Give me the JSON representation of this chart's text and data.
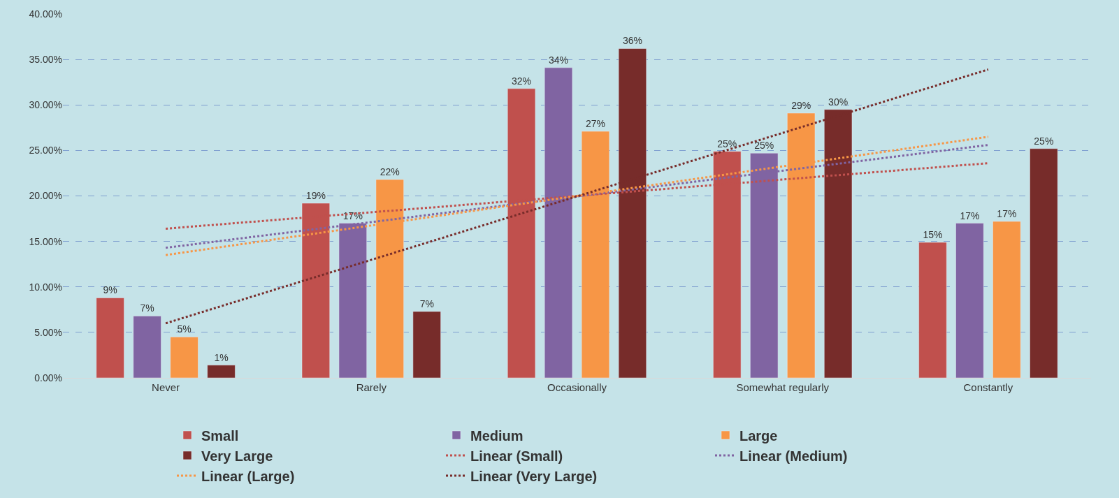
{
  "chart_data": {
    "type": "bar",
    "categories": [
      "Never",
      "Rarely",
      "Occasionally",
      "Somewhat regularly",
      "Constantly"
    ],
    "ylim": [
      0,
      40
    ],
    "yticks": [
      {
        "value": 0,
        "label": "0.00%"
      },
      {
        "value": 5,
        "label": "5.00%"
      },
      {
        "value": 10,
        "label": "10.00%"
      },
      {
        "value": 15,
        "label": "15.00%"
      },
      {
        "value": 20,
        "label": "20.00%"
      },
      {
        "value": 25,
        "label": "25.00%"
      },
      {
        "value": 30,
        "label": "30.00%"
      },
      {
        "value": 35,
        "label": "35.00%"
      },
      {
        "value": 40,
        "label": "40.00%"
      }
    ],
    "grid": "y",
    "legend": "bottom",
    "series": [
      {
        "name": "Small",
        "color": "#c0504d",
        "values": [
          8.8,
          19.2,
          31.8,
          24.9,
          14.9
        ],
        "value_labels": [
          "9%",
          "19%",
          "32%",
          "25%",
          "15%"
        ]
      },
      {
        "name": "Medium",
        "color": "#8064a2",
        "values": [
          6.8,
          17.0,
          34.1,
          24.7,
          17.0
        ],
        "value_labels": [
          "7%",
          "17%",
          "34%",
          "25%",
          "17%"
        ]
      },
      {
        "name": "Large",
        "color": "#f79646",
        "values": [
          4.5,
          21.8,
          27.1,
          29.1,
          17.2
        ],
        "value_labels": [
          "5%",
          "22%",
          "27%",
          "29%",
          "17%"
        ]
      },
      {
        "name": "Very Large",
        "color": "#772c2a",
        "values": [
          1.4,
          7.3,
          36.2,
          29.5,
          25.2
        ],
        "value_labels": [
          "1%",
          "7%",
          "36%",
          "30%",
          "25%"
        ]
      },
      {
        "name": "Linear (Small)",
        "type": "line",
        "line_style": "dotted",
        "color": "#c0504d",
        "x": [
          "Never",
          "Constantly"
        ],
        "values": [
          16.4,
          23.6
        ]
      },
      {
        "name": "Linear (Medium)",
        "type": "line",
        "line_style": "dotted",
        "color": "#8064a2",
        "x": [
          "Never",
          "Constantly"
        ],
        "values": [
          14.3,
          25.6
        ]
      },
      {
        "name": "Linear (Large)",
        "type": "line",
        "line_style": "dotted",
        "color": "#f79646",
        "x": [
          "Never",
          "Constantly"
        ],
        "values": [
          13.5,
          26.5
        ]
      },
      {
        "name": "Linear (Very Large)",
        "type": "line",
        "line_style": "dotted",
        "color": "#772c2a",
        "x": [
          "Never",
          "Constantly"
        ],
        "values": [
          6.0,
          33.9
        ]
      }
    ]
  }
}
